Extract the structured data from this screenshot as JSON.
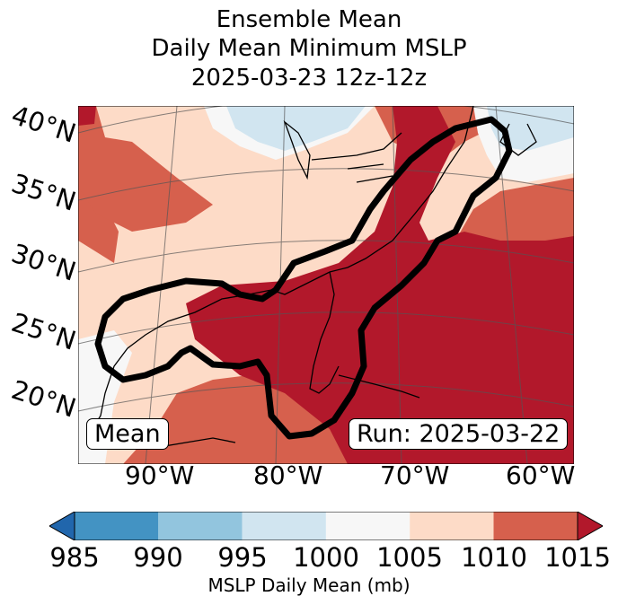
{
  "title": {
    "line1": "Ensemble Mean",
    "line2": "Daily Mean Minimum MSLP",
    "line3": "2025-03-23 12z-12z"
  },
  "lat_labels": [
    "40°N",
    "35°N",
    "30°N",
    "25°N",
    "20°N"
  ],
  "lon_labels": [
    "90°W",
    "80°W",
    "70°W",
    "60°W"
  ],
  "mean_box": "Mean",
  "run_box": "Run: 2025-03-22",
  "colorbar": {
    "ticks": [
      "985",
      "990",
      "995",
      "1000",
      "1005",
      "1010",
      "1015"
    ],
    "label": "MSLP Daily Mean (mb)",
    "colors": {
      "below": "#2166ac",
      "985_990": "#4393c3",
      "990_995": "#92c5de",
      "995_1000": "#d1e5f0",
      "1000_1005": "#f7f7f7",
      "1005_1010": "#fddbc7",
      "1010_1015": "#d6604d",
      "above": "#b2182b"
    }
  }
}
